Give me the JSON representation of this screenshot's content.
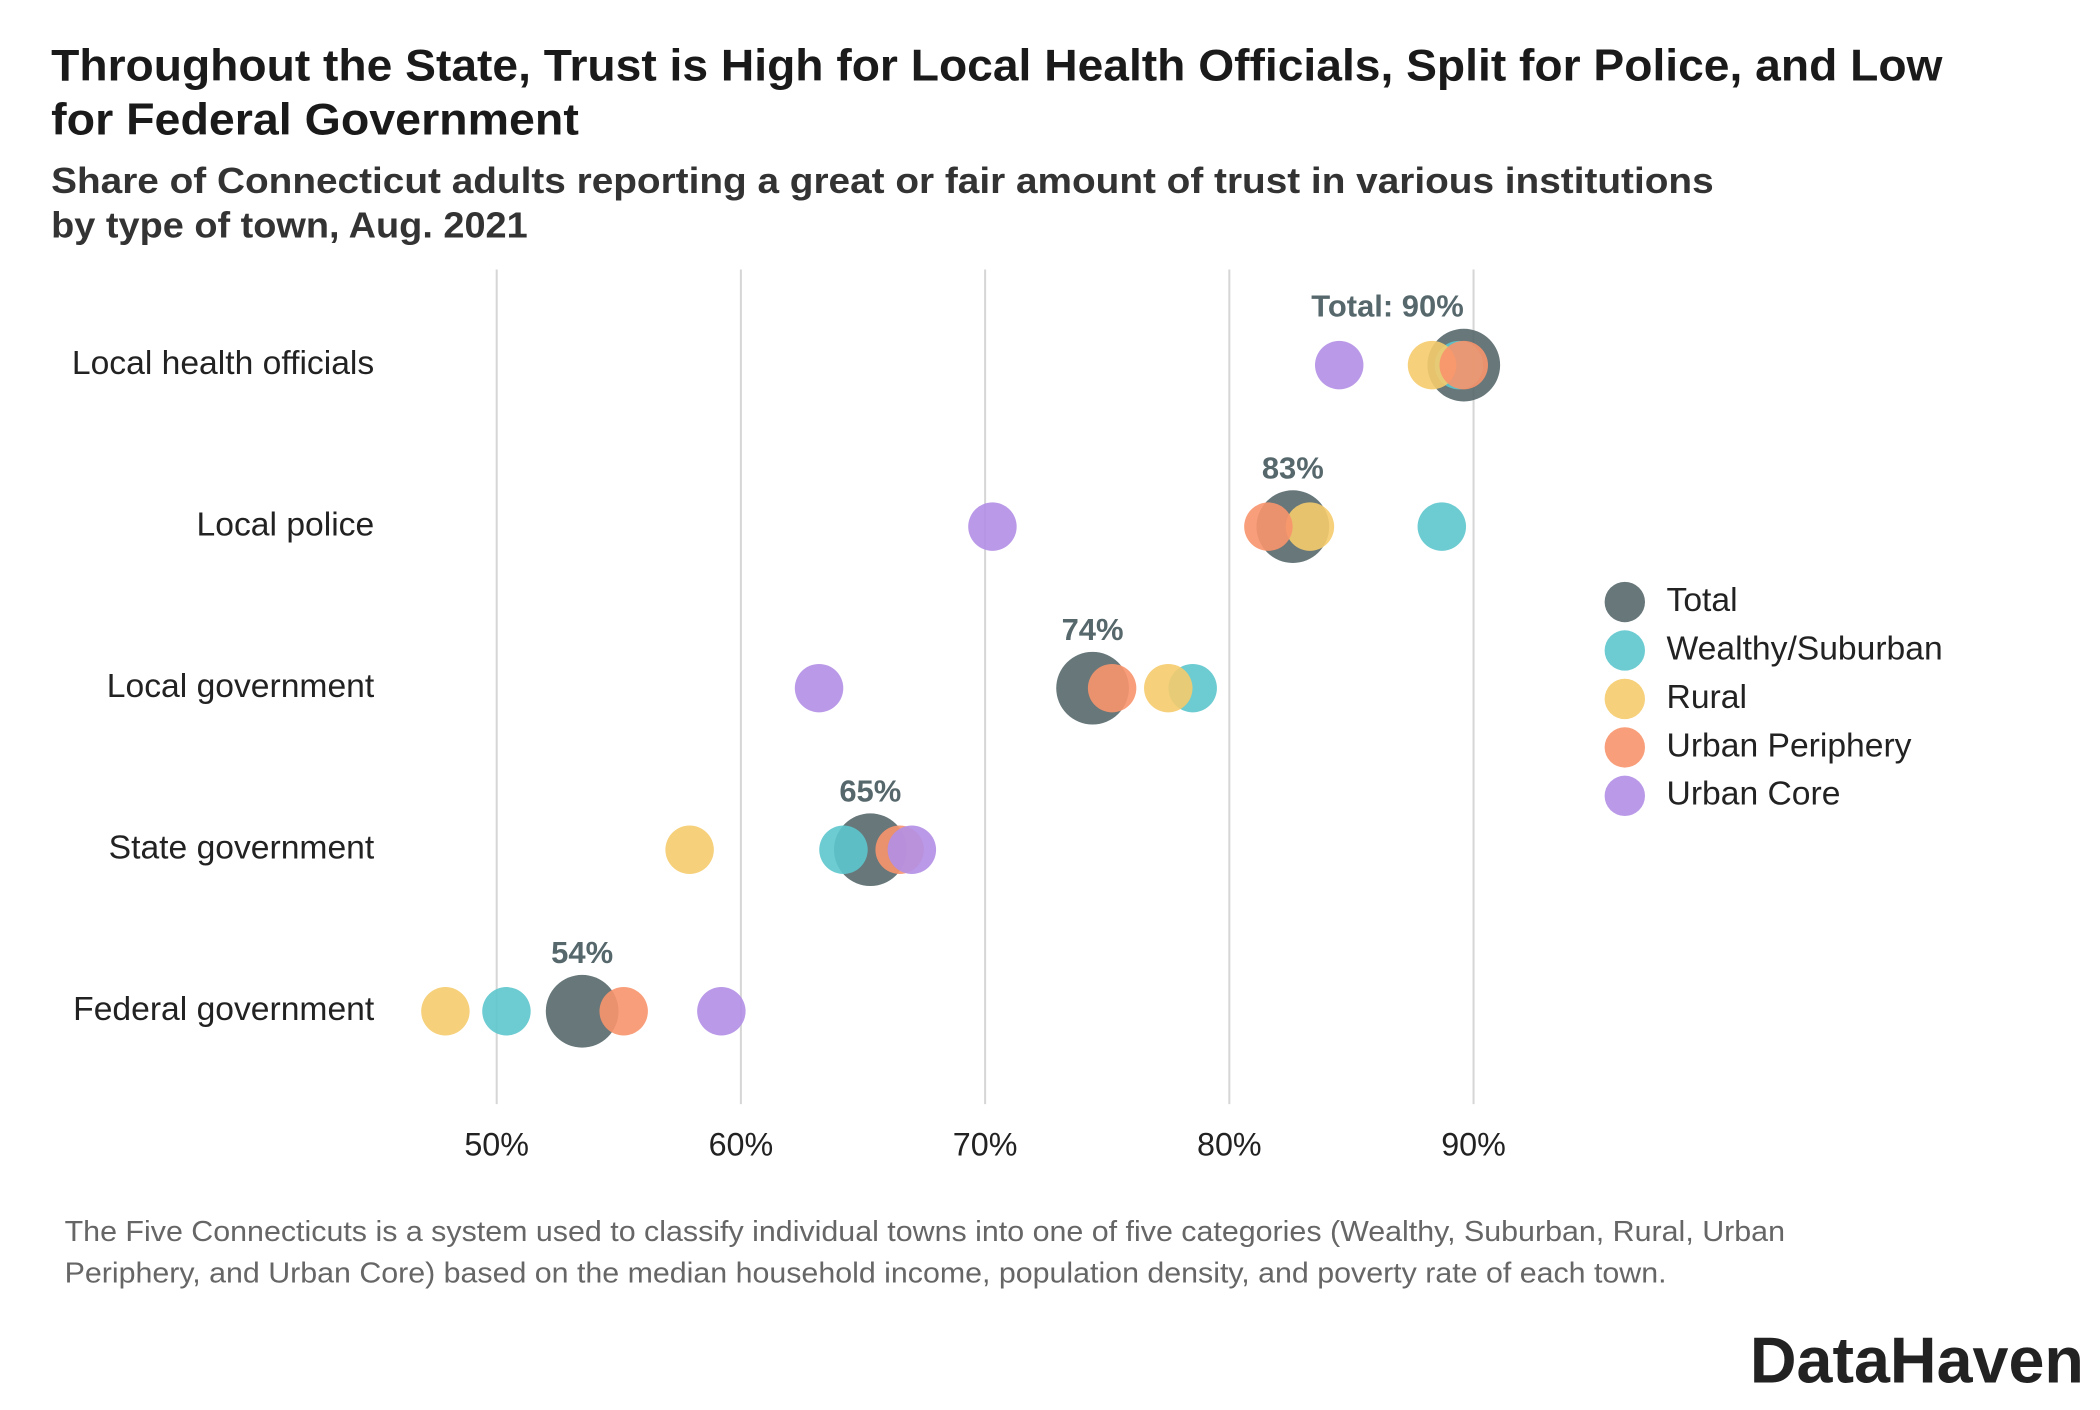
{
  "chart_data": {
    "type": "dot",
    "title": [
      "Throughout the State, Trust is High for Local Health Officials, Split for Police, and Low",
      "for Federal Government"
    ],
    "subtitle": [
      "Share of Connecticut adults reporting a great or fair amount of trust in various institutions",
      "by type of town, Aug. 2021"
    ],
    "categories": [
      "Local health officials",
      "Local police",
      "Local government",
      "State government",
      "Federal government"
    ],
    "series": [
      {
        "name": "Total",
        "color": "#56686c",
        "values": [
          89.6,
          82.6,
          74.4,
          65.3,
          53.5
        ],
        "value_labels": [
          "Total: 90%",
          "83%",
          "74%",
          "65%",
          "54%"
        ]
      },
      {
        "name": "Wealthy/Suburban",
        "color": "#5cc6cd",
        "values": [
          89.4,
          88.7,
          78.5,
          64.2,
          50.4
        ]
      },
      {
        "name": "Rural",
        "color": "#f5cb6b",
        "values": [
          88.3,
          83.3,
          77.5,
          57.9,
          47.9
        ]
      },
      {
        "name": "Urban Periphery",
        "color": "#f8946c",
        "values": [
          89.6,
          81.6,
          75.2,
          66.5,
          55.2
        ]
      },
      {
        "name": "Urban Core",
        "color": "#b38fe6",
        "values": [
          84.5,
          70.3,
          63.2,
          67.0,
          59.2
        ]
      }
    ],
    "xlim": [
      46,
      94
    ],
    "xticks": [
      {
        "value": 50,
        "label": "50%"
      },
      {
        "value": 60,
        "label": "60%"
      },
      {
        "value": 70,
        "label": "70%"
      },
      {
        "value": 80,
        "label": "80%"
      },
      {
        "value": 90,
        "label": "90%"
      }
    ],
    "grid": true,
    "legend": "right",
    "note": [
      "The Five Connecticuts is a system used to classify individual towns into one of five categories (Wealthy, Suburban, Rural, Urban",
      "Periphery, and Urban Core) based on the median household income, population density, and poverty rate of each town."
    ],
    "logo": "DataHaven"
  }
}
